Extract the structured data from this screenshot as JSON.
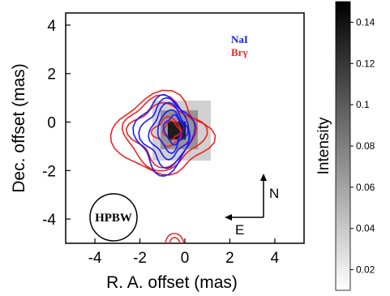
{
  "chart_data": {
    "type": "contour",
    "xlabel": "R. A. offset (mas)",
    "ylabel": "Dec. offset (mas)",
    "xlim": [
      -5.3,
      5.3
    ],
    "ylim": [
      -5,
      4.5
    ],
    "xticks": [
      -4,
      -2,
      0,
      2,
      4
    ],
    "yticks": [
      -4,
      -2,
      0,
      2,
      4
    ],
    "series": [
      {
        "name": "NaI",
        "color": "#1a1aff",
        "contours": [
          {
            "cx": -0.9,
            "cy": -0.5,
            "rx": 1.2,
            "ry": 1.5
          },
          {
            "cx": -0.8,
            "cy": -0.45,
            "rx": 1.0,
            "ry": 1.3
          },
          {
            "cx": -0.7,
            "cy": -0.4,
            "rx": 0.8,
            "ry": 1.05
          },
          {
            "cx": -0.6,
            "cy": -0.35,
            "rx": 0.6,
            "ry": 0.8
          },
          {
            "cx": -0.5,
            "cy": -0.3,
            "rx": 0.4,
            "ry": 0.55
          }
        ]
      },
      {
        "name": "Brγ",
        "color": "#ee2222",
        "contours": [
          {
            "cx": -1.0,
            "cy": -0.55,
            "rx": 2.0,
            "ry": 1.55
          },
          {
            "cx": -0.95,
            "cy": -0.5,
            "rx": 1.6,
            "ry": 1.4
          },
          {
            "cx": -0.9,
            "cy": -0.5,
            "rx": 1.3,
            "ry": 1.2
          },
          {
            "cx": -0.75,
            "cy": -0.4,
            "rx": 0.6,
            "ry": 0.55
          },
          {
            "cx": -0.6,
            "cy": -0.35,
            "rx": 0.35,
            "ry": 0.35
          }
        ]
      }
    ],
    "colorbar": {
      "label": "Intensity",
      "range": [
        0.01,
        0.15
      ],
      "ticks": [
        "0.14",
        "0.12",
        "0.1",
        "0.08",
        "0.06",
        "0.04",
        "0.02"
      ]
    },
    "annotations": {
      "beam": "HPBW",
      "north": "N",
      "east": "E"
    }
  }
}
